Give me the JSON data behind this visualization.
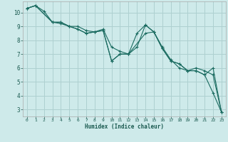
{
  "title": "",
  "xlabel": "Humidex (Indice chaleur)",
  "ylabel": "",
  "bg_color": "#ceeaea",
  "grid_color": "#aed0d0",
  "line_color": "#1a6b60",
  "xlim": [
    -0.5,
    23.5
  ],
  "ylim": [
    2.5,
    10.8
  ],
  "xticks": [
    0,
    1,
    2,
    3,
    4,
    5,
    6,
    7,
    8,
    9,
    10,
    11,
    12,
    13,
    14,
    15,
    16,
    17,
    18,
    19,
    20,
    21,
    22,
    23
  ],
  "yticks": [
    3,
    4,
    5,
    6,
    7,
    8,
    9,
    10
  ],
  "series": [
    {
      "x": [
        0,
        1,
        2,
        3,
        4,
        5,
        6,
        7,
        8,
        9,
        10,
        11,
        12,
        13,
        14,
        15,
        16,
        17,
        18,
        19,
        20,
        21,
        22,
        23
      ],
      "y": [
        10.3,
        10.5,
        10.1,
        9.3,
        9.3,
        9.0,
        8.8,
        8.5,
        8.6,
        8.7,
        6.5,
        7.0,
        7.0,
        8.5,
        9.1,
        8.6,
        7.4,
        6.5,
        6.3,
        5.8,
        5.8,
        5.5,
        4.2,
        2.8
      ]
    },
    {
      "x": [
        0,
        1,
        3,
        4,
        5,
        6,
        7,
        8,
        9,
        10,
        11,
        12,
        13,
        14,
        15,
        16,
        17,
        18,
        19,
        20,
        21,
        22,
        23
      ],
      "y": [
        10.3,
        10.5,
        9.3,
        9.3,
        9.0,
        9.0,
        8.7,
        8.6,
        8.8,
        7.5,
        7.2,
        7.0,
        7.5,
        9.1,
        8.6,
        7.5,
        6.6,
        6.0,
        5.8,
        6.0,
        5.8,
        5.5,
        2.8
      ]
    },
    {
      "x": [
        0,
        1,
        3,
        4,
        5,
        6,
        7,
        8,
        9,
        10,
        11,
        12,
        14,
        15,
        16,
        17,
        18,
        19,
        20,
        21,
        22,
        23
      ],
      "y": [
        10.3,
        10.5,
        9.3,
        9.2,
        9.0,
        8.8,
        8.5,
        8.6,
        8.7,
        6.5,
        7.0,
        7.0,
        8.5,
        8.6,
        7.4,
        6.5,
        6.3,
        5.8,
        5.8,
        5.5,
        6.0,
        2.8
      ]
    }
  ]
}
